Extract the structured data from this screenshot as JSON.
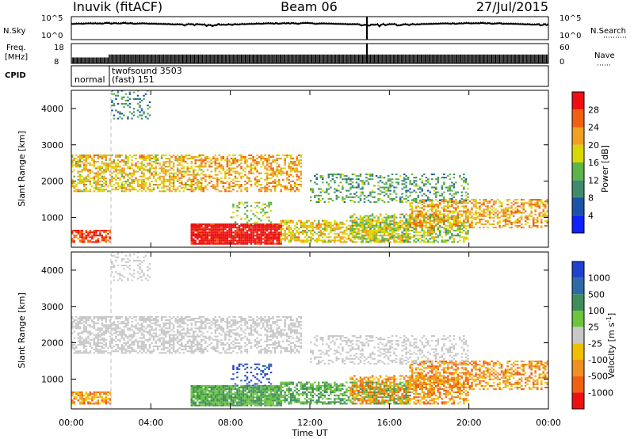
{
  "header": {
    "station": "Inuvik (fitACF)",
    "beam": "Beam 06",
    "date": "27/Jul/2015"
  },
  "chart_data": [
    {
      "type": "line",
      "name": "noise-panel",
      "left_label": "N.Sky",
      "right_label": "N.Search",
      "left_ticks": [
        "10^5",
        "10^0"
      ],
      "right_ticks": [
        "10^5",
        "10^0"
      ],
      "yscale": "log",
      "ylim": [
        1,
        100000
      ]
    },
    {
      "type": "line",
      "name": "frequency-panel",
      "left_label_lines": [
        "Freq.",
        "[MHz]"
      ],
      "left_ticks": [
        "18",
        "8"
      ],
      "ylim_left": [
        8,
        18
      ],
      "right_label": "Nave",
      "right_ticks": [
        "60",
        "0"
      ],
      "ylim_right": [
        0,
        60
      ]
    },
    {
      "type": "table",
      "name": "cpid-panel",
      "label": "CPID",
      "entries": [
        {
          "start_hour": 0.0,
          "end_hour": 1.9,
          "text_lines": [
            "normal"
          ]
        },
        {
          "start_hour": 1.9,
          "end_hour": 24.0,
          "text_lines": [
            "twofsound 3503",
            "(fast) 151"
          ]
        }
      ]
    },
    {
      "type": "heatmap",
      "name": "power",
      "ylabel": "Slant Range [km]",
      "xlim": [
        0,
        24
      ],
      "ylim": [
        180,
        4500
      ],
      "yticks": [
        "1000",
        "2000",
        "3000",
        "4000"
      ],
      "colorbar": {
        "label": "Power [dB]",
        "ticks": [
          "4",
          "8",
          "12",
          "16",
          "20",
          "24",
          "28"
        ],
        "colors": [
          "#1020ff",
          "#1c53a8",
          "#3e8c6c",
          "#5cb44a",
          "#d8d800",
          "#f0a020",
          "#f06010",
          "#ee1010"
        ]
      }
    },
    {
      "type": "heatmap",
      "name": "velocity",
      "ylabel": "Slant Range [km]",
      "xlabel": "Time UT",
      "xlim": [
        0,
        24
      ],
      "ylim": [
        180,
        4500
      ],
      "yticks": [
        "1000",
        "2000",
        "3000",
        "4000"
      ],
      "xticks": [
        "00:00",
        "04:00",
        "08:00",
        "12:00",
        "16:00",
        "20:00",
        "00:00"
      ],
      "colorbar": {
        "label": "Velocity [m s",
        "label_sup": "-1",
        "label_close": "]",
        "ticks": [
          "1000",
          "500",
          "100",
          "25",
          "-25",
          "-100",
          "-500",
          "-1000"
        ],
        "colors": [
          "#2040d0",
          "#2d6aa6",
          "#3c8f58",
          "#6cc53a",
          "#c8c8c8",
          "#f0c000",
          "#f09020",
          "#f06010",
          "#ee1010"
        ]
      }
    }
  ]
}
